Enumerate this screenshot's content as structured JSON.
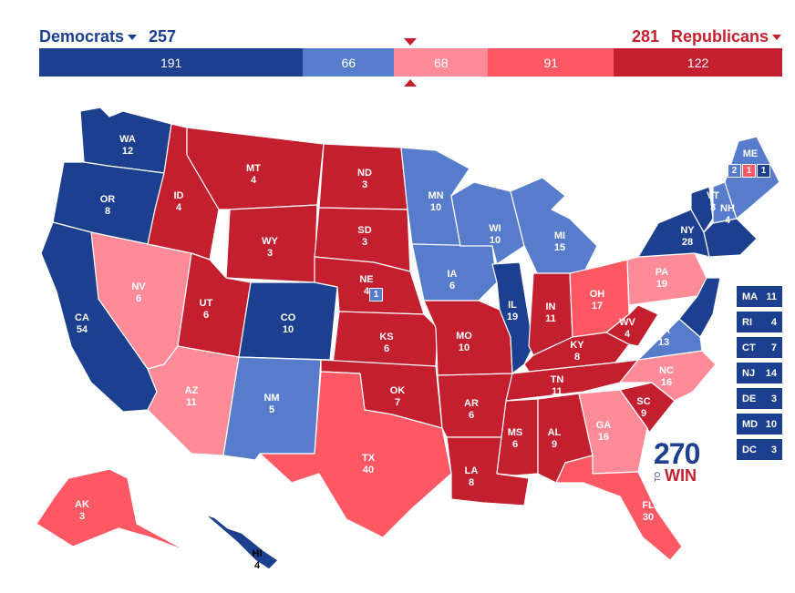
{
  "header": {
    "dem_label": "Democrats",
    "dem_total": "257",
    "rep_total": "281",
    "rep_label": "Republicans"
  },
  "colors": {
    "safe_dem": "#1c3f8f",
    "likely_dem": "#577ccc",
    "lean_rep": "#ff8b98",
    "likely_rep": "#ff5865",
    "safe_rep": "#c41f2f"
  },
  "bar": [
    {
      "value": "191",
      "color": "#1c3f8f",
      "share": 191
    },
    {
      "value": "66",
      "color": "#577ccc",
      "share": 66
    },
    {
      "value": "68",
      "color": "#ff8b98",
      "share": 68
    },
    {
      "value": "91",
      "color": "#ff5865",
      "share": 91
    },
    {
      "value": "122",
      "color": "#c41f2f",
      "share": 122
    }
  ],
  "states": {
    "WA": {
      "abbr": "WA",
      "votes": "12",
      "rating": "safe_dem"
    },
    "OR": {
      "abbr": "OR",
      "votes": "8",
      "rating": "safe_dem"
    },
    "CA": {
      "abbr": "CA",
      "votes": "54",
      "rating": "safe_dem"
    },
    "NV": {
      "abbr": "NV",
      "votes": "6",
      "rating": "lean_rep"
    },
    "ID": {
      "abbr": "ID",
      "votes": "4",
      "rating": "safe_rep"
    },
    "MT": {
      "abbr": "MT",
      "votes": "4",
      "rating": "safe_rep"
    },
    "WY": {
      "abbr": "WY",
      "votes": "3",
      "rating": "safe_rep"
    },
    "UT": {
      "abbr": "UT",
      "votes": "6",
      "rating": "safe_rep"
    },
    "AZ": {
      "abbr": "AZ",
      "votes": "11",
      "rating": "lean_rep"
    },
    "CO": {
      "abbr": "CO",
      "votes": "10",
      "rating": "safe_dem"
    },
    "NM": {
      "abbr": "NM",
      "votes": "5",
      "rating": "likely_dem"
    },
    "ND": {
      "abbr": "ND",
      "votes": "3",
      "rating": "safe_rep"
    },
    "SD": {
      "abbr": "SD",
      "votes": "3",
      "rating": "safe_rep"
    },
    "NE": {
      "abbr": "NE",
      "votes": "4",
      "rating": "safe_rep"
    },
    "KS": {
      "abbr": "KS",
      "votes": "6",
      "rating": "safe_rep"
    },
    "OK": {
      "abbr": "OK",
      "votes": "7",
      "rating": "safe_rep"
    },
    "TX": {
      "abbr": "TX",
      "votes": "40",
      "rating": "likely_rep"
    },
    "MN": {
      "abbr": "MN",
      "votes": "10",
      "rating": "likely_dem"
    },
    "IA": {
      "abbr": "IA",
      "votes": "6",
      "rating": "likely_dem"
    },
    "MO": {
      "abbr": "MO",
      "votes": "10",
      "rating": "safe_rep"
    },
    "AR": {
      "abbr": "AR",
      "votes": "6",
      "rating": "safe_rep"
    },
    "LA": {
      "abbr": "LA",
      "votes": "8",
      "rating": "safe_rep"
    },
    "WI": {
      "abbr": "WI",
      "votes": "10",
      "rating": "likely_dem"
    },
    "IL": {
      "abbr": "IL",
      "votes": "19",
      "rating": "safe_dem"
    },
    "MI": {
      "abbr": "MI",
      "votes": "15",
      "rating": "likely_dem"
    },
    "IN": {
      "abbr": "IN",
      "votes": "11",
      "rating": "safe_rep"
    },
    "OH": {
      "abbr": "OH",
      "votes": "17",
      "rating": "likely_rep"
    },
    "KY": {
      "abbr": "KY",
      "votes": "8",
      "rating": "safe_rep"
    },
    "TN": {
      "abbr": "TN",
      "votes": "11",
      "rating": "safe_rep"
    },
    "MS": {
      "abbr": "MS",
      "votes": "6",
      "rating": "safe_rep"
    },
    "AL": {
      "abbr": "AL",
      "votes": "9",
      "rating": "safe_rep"
    },
    "GA": {
      "abbr": "GA",
      "votes": "16",
      "rating": "lean_rep"
    },
    "FL": {
      "abbr": "FL",
      "votes": "30",
      "rating": "likely_rep"
    },
    "SC": {
      "abbr": "SC",
      "votes": "9",
      "rating": "safe_rep"
    },
    "NC": {
      "abbr": "NC",
      "votes": "16",
      "rating": "lean_rep"
    },
    "VA": {
      "abbr": "VA",
      "votes": "13",
      "rating": "likely_dem"
    },
    "WV": {
      "abbr": "WV",
      "votes": "4",
      "rating": "safe_rep"
    },
    "PA": {
      "abbr": "PA",
      "votes": "19",
      "rating": "lean_rep"
    },
    "NY": {
      "abbr": "NY",
      "votes": "28",
      "rating": "safe_dem"
    },
    "VT": {
      "abbr": "VT",
      "votes": "3",
      "rating": "safe_dem"
    },
    "NH": {
      "abbr": "NH",
      "votes": "4",
      "rating": "likely_dem"
    },
    "ME": {
      "abbr": "ME",
      "votes": "",
      "rating": "likely_dem"
    },
    "AK": {
      "abbr": "AK",
      "votes": "3",
      "rating": "likely_rep"
    },
    "HI": {
      "abbr": "HI",
      "votes": "4",
      "rating": "safe_dem"
    }
  },
  "maine_districts": {
    "statewide": "2",
    "cd2": "1",
    "cd1": "1"
  },
  "nebraska_district": "1",
  "small_states": [
    {
      "abbr": "MA",
      "votes": "11"
    },
    {
      "abbr": "RI",
      "votes": "4"
    },
    {
      "abbr": "CT",
      "votes": "7"
    },
    {
      "abbr": "NJ",
      "votes": "14"
    },
    {
      "abbr": "DE",
      "votes": "3"
    },
    {
      "abbr": "MD",
      "votes": "10"
    },
    {
      "abbr": "DC",
      "votes": "3"
    }
  ],
  "logo": {
    "number": "270",
    "to": "TO",
    "win": "WIN"
  }
}
